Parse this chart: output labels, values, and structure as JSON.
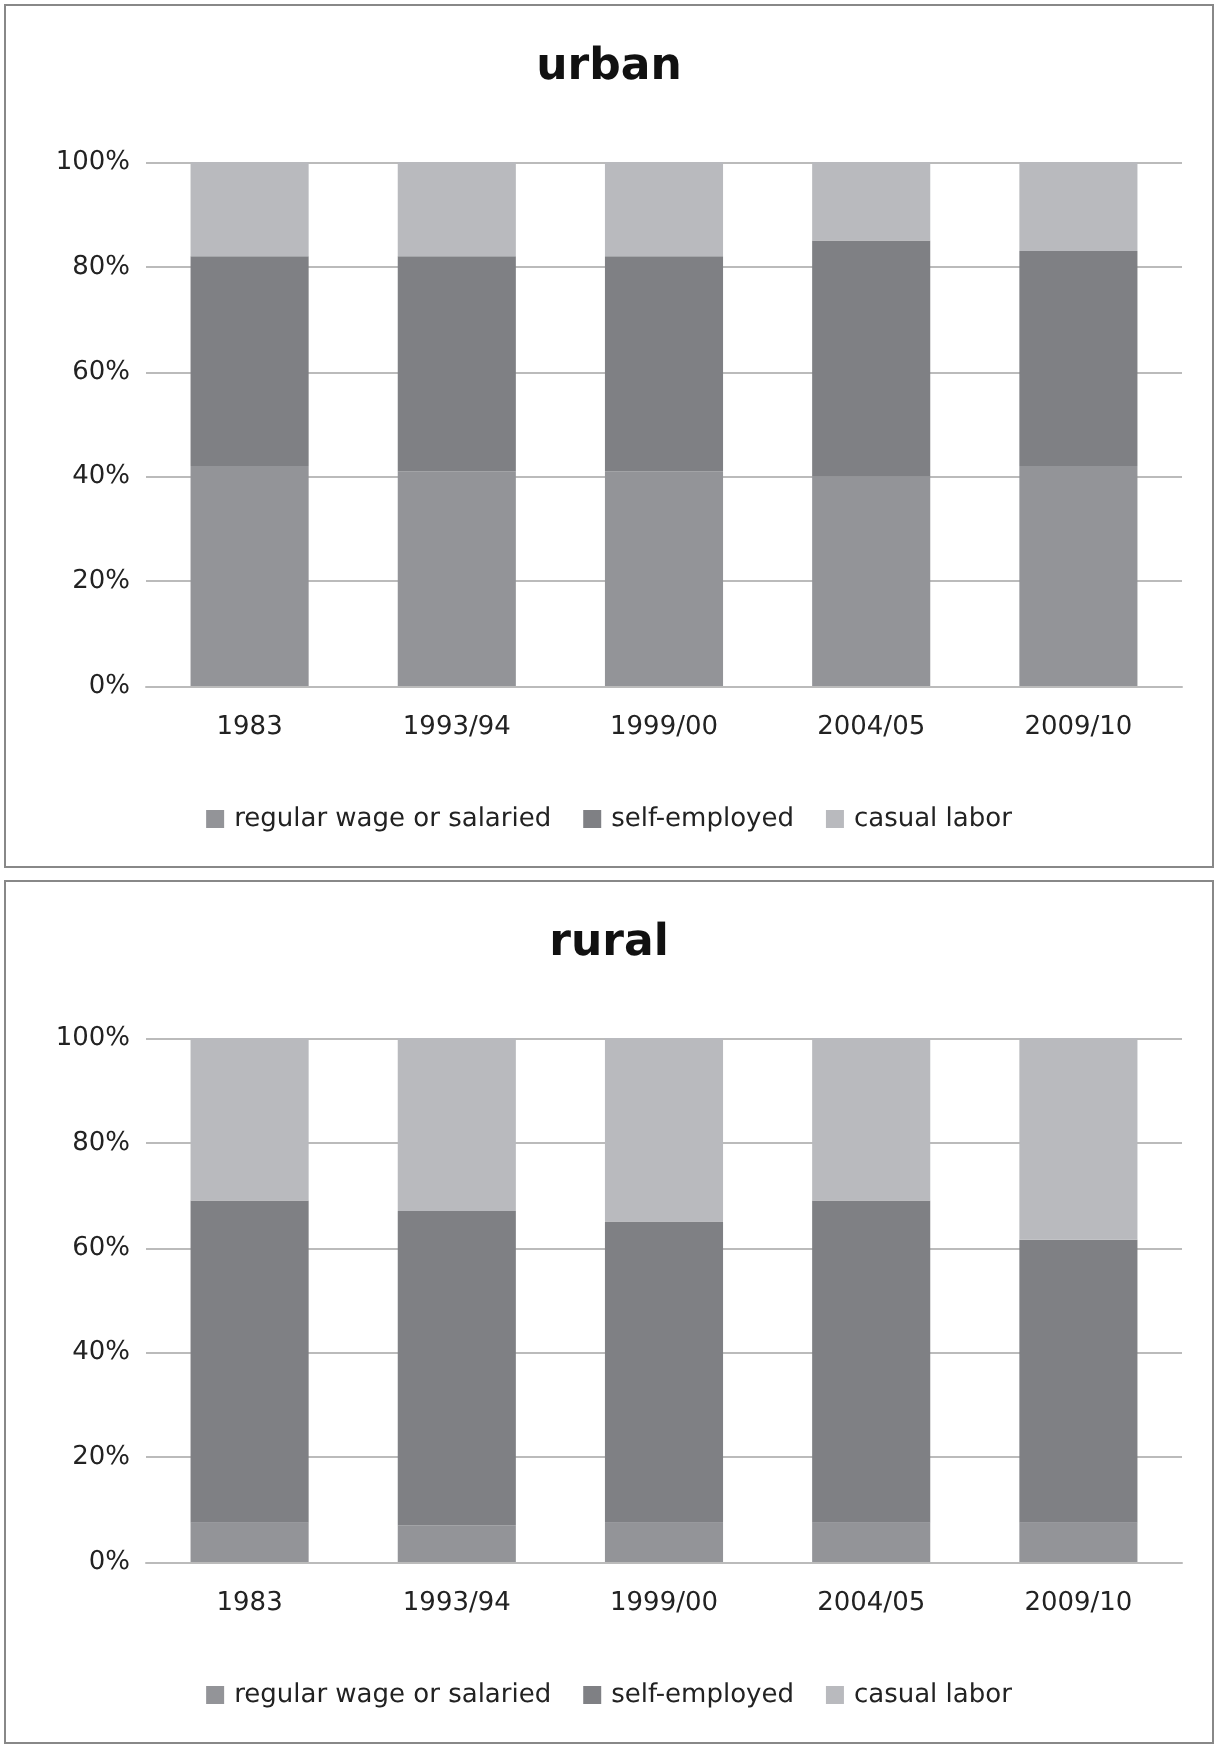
{
  "chart_data": [
    {
      "type": "bar",
      "title": "urban",
      "stacked": true,
      "categories": [
        "1983",
        "1993/94",
        "1999/00",
        "2004/05",
        "2009/10"
      ],
      "ylim": [
        0,
        100
      ],
      "yticks": [
        {
          "value": 0,
          "label": "0%"
        },
        {
          "value": 20,
          "label": "20%"
        },
        {
          "value": 40,
          "label": "40%"
        },
        {
          "value": 60,
          "label": "60%"
        },
        {
          "value": 80,
          "label": "80%"
        },
        {
          "value": 100,
          "label": "100%"
        }
      ],
      "grid": "y",
      "legend": "bottom",
      "series": [
        {
          "name": "regular wage or salaried",
          "color": "#939498",
          "values": [
            42,
            41,
            41,
            40,
            42
          ]
        },
        {
          "name": "self-employed",
          "color": "#7f8084",
          "values": [
            40,
            41,
            41,
            45,
            41
          ]
        },
        {
          "name": "casual labor",
          "color": "#b9babe",
          "values": [
            18,
            18,
            18,
            15,
            17
          ]
        }
      ]
    },
    {
      "type": "bar",
      "title": "rural",
      "stacked": true,
      "categories": [
        "1983",
        "1993/94",
        "1999/00",
        "2004/05",
        "2009/10"
      ],
      "ylim": [
        0,
        100
      ],
      "yticks": [
        {
          "value": 0,
          "label": "0%"
        },
        {
          "value": 20,
          "label": "20%"
        },
        {
          "value": 40,
          "label": "40%"
        },
        {
          "value": 60,
          "label": "60%"
        },
        {
          "value": 80,
          "label": "80%"
        },
        {
          "value": 100,
          "label": "100%"
        }
      ],
      "grid": "y",
      "legend": "bottom",
      "series": [
        {
          "name": "regular wage or salaried",
          "color": "#939498",
          "values": [
            7.5,
            7,
            7.5,
            7.5,
            7.5
          ]
        },
        {
          "name": "self-employed",
          "color": "#7f8084",
          "values": [
            61.5,
            60,
            57.5,
            61.5,
            54
          ]
        },
        {
          "name": "casual labor",
          "color": "#b9babe",
          "values": [
            31,
            33,
            35,
            31,
            38.5
          ]
        }
      ]
    }
  ]
}
